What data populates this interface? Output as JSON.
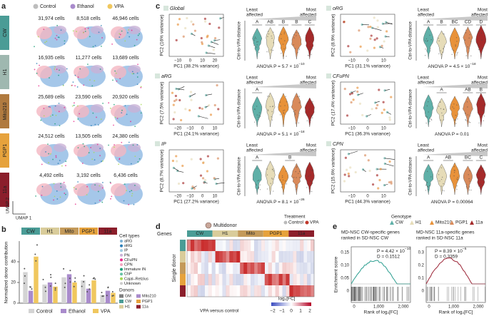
{
  "panel_a": {
    "letter": "a",
    "columns": [
      "Control",
      "Ethanol",
      "VPA"
    ],
    "column_colors": [
      "#bdbdbd",
      "#a98bcc",
      "#f0c75e"
    ],
    "rows": [
      {
        "donor": "CW",
        "counts": [
          "31,974 cells",
          "8,518 cells",
          "46,946 cells"
        ]
      },
      {
        "donor": "H1",
        "counts": [
          "16,935 cells",
          "11,277 cells",
          "13,689 cells"
        ]
      },
      {
        "donor": "Mito210",
        "counts": [
          "25,689 cells",
          "23,590 cells",
          "20,920 cells"
        ]
      },
      {
        "donor": "PGP1",
        "counts": [
          "24,512 cells",
          "13,505 cells",
          "24,380 cells"
        ]
      },
      {
        "donor": "11a",
        "counts": [
          "4,492 cells",
          "3,192 cells",
          "6,436 cells"
        ]
      }
    ],
    "donor_colors": [
      "#4a9c96",
      "#9fb8b0",
      "#b07a3f",
      "#e6a23c",
      "#8b1e2b"
    ],
    "y_axis": "UMAP 2",
    "x_axis": "UMAP 1"
  },
  "panel_b": {
    "letter": "b",
    "donors": [
      "CW",
      "H1",
      "Mito",
      "PGP1",
      "11a"
    ],
    "donor_colors": [
      "#4a9c96",
      "#d9cc9a",
      "#c49a5a",
      "#e6a23c",
      "#8b1e2b"
    ],
    "y_label": "Normalized donor contribution",
    "ylim": [
      0,
      60
    ],
    "yticks": [
      0,
      20,
      40
    ],
    "series": [
      {
        "name": "Control",
        "color": "#d4d4d4",
        "values": [
          30,
          18,
          25,
          22,
          8
        ]
      },
      {
        "name": "Ethanol",
        "color": "#a98bcc",
        "values": [
          12,
          20,
          28,
          14,
          12
        ]
      },
      {
        "name": "VPA",
        "color": "#f0c75e",
        "values": [
          45,
          16,
          20,
          22,
          10
        ]
      }
    ],
    "cell_types_title": "Cell types",
    "cell_types": [
      "aRG",
      "oRG",
      "IP",
      "PN",
      "CFuPN",
      "CPN",
      "Immature IN",
      "ChP",
      "Cajal–Retzius",
      "Unknown"
    ],
    "cell_type_colors": [
      "#7fb3d5",
      "#2c7fb8",
      "#9ecae1",
      "#c9b2d6",
      "#e7298a",
      "#f4a6c0",
      "#1b9e77",
      "#66c2a5",
      "#a6d854",
      "#cccccc"
    ],
    "donors_title": "Donors",
    "donor_legend": [
      "GM",
      "CW",
      "H1",
      "Mito210",
      "PGP1",
      "11a"
    ],
    "donor_legend_colors": [
      "#7f7f7f",
      "#4a9c96",
      "#d9cc9a",
      "#a98bcc",
      "#e6a23c",
      "#8b1e2b"
    ]
  },
  "panel_c": {
    "letter": "c",
    "least_affected": [
      "Least",
      "affected"
    ],
    "most_affected": [
      "Most",
      "affected"
    ],
    "y_label": "Ctrl-to-VPA distance",
    "genotype_colors": [
      "#5fb0a8",
      "#e6dcb8",
      "#e8923a",
      "#d98a5a",
      "#a52a2a"
    ],
    "plots": [
      {
        "name": "Global",
        "pc1": "PC1 (38.2% variance)",
        "pc2": "PC2 (16% variance)",
        "xticks": [
          "−10",
          "0",
          "10",
          "20"
        ],
        "letters": [
          "A",
          "AB",
          "B",
          "B",
          "C"
        ],
        "anova": "ANOVA P = 5.7 × 10",
        "anova_exp": "−10"
      },
      {
        "name": "aRG",
        "pc1": "PC1 (24.1% variance)",
        "pc2": "PC2 (7.5% variance)",
        "xticks": [
          "−20",
          "−10",
          "0",
          "10"
        ],
        "letters": [
          "A"
        ],
        "anova": "ANOVA P = 5.1 × 10",
        "anova_exp": "−18"
      },
      {
        "name": "IP",
        "pc1": "PC1 (27.2% variance)",
        "pc2": "PC2 (8.7% variance)",
        "xticks": [
          "−20",
          "−10",
          "0",
          "10"
        ],
        "letters": [
          "A",
          "B"
        ],
        "anova": "ANOVA P = 8.1 × 10",
        "anova_exp": "−26"
      },
      {
        "name": "oRG",
        "pc1": "PC1 (31.1% variance)",
        "pc2": "PC2 (8.9% variance)",
        "xticks": [
          "−10",
          "0",
          "10"
        ],
        "letters": [
          "A",
          "B",
          "BC",
          "CD",
          "D"
        ],
        "anova": "ANOVA P = 4.5 × 10",
        "anova_exp": "−18"
      },
      {
        "name": "CFuPN",
        "pc1": "PC1 (36.3% variance)",
        "pc2": "PC2 (17.4% variance)",
        "xticks": [
          "−10",
          "0",
          "10"
        ],
        "letters": [
          "A",
          "AB",
          "B"
        ],
        "anova": "ANOVA P = 0.01"
      },
      {
        "name": "CPN",
        "pc1": "PC1 (44.3% variance)",
        "pc2": "PC2 (15.6% variance)",
        "xticks": [
          "−10",
          "0",
          "10"
        ],
        "letters": [
          "A",
          "AB",
          "BC",
          "C"
        ],
        "anova": "ANOVA P = 0.00064"
      }
    ],
    "treatment_title": "Treatment",
    "treatments": [
      "Control",
      "VPA"
    ],
    "treatment_colors": [
      "#bbbbbb",
      "#c0392b"
    ],
    "genotype_title": "Genotype",
    "genotypes": [
      "CW",
      "H1",
      "Mito210",
      "PGP1",
      "11a"
    ]
  },
  "panel_d": {
    "letter": "d",
    "multidonor": "Multidonor",
    "genes": "Genes",
    "single_donor": "Single donor",
    "donors": [
      "CW",
      "H1",
      "Mito",
      "PGP1",
      "11a"
    ],
    "scale_title": "log₂[FC]",
    "scale_caption": "VPA versus control",
    "scale_ticks": [
      "−2",
      "−1",
      "0",
      "1",
      "2"
    ]
  },
  "panel_e": {
    "letter": "e",
    "y_label": "Enrichment score",
    "x_label": "Rank of log₂[FC]",
    "xticks": [
      "0",
      "1,000",
      "2,000"
    ],
    "plots": [
      {
        "title": [
          "MD-NSC CW-specific genes",
          "ranked in SD-NSC CW"
        ],
        "p": "P = 4.42 × 10",
        "p_exp": "−10",
        "d": "D = 0.1512",
        "yticks": [
          "0.15",
          "0.10",
          "0.05",
          "0"
        ],
        "color": "#2a9d8f"
      },
      {
        "title": [
          "MD-NSC 11a-specific genes",
          "ranked in SD-NSC 11a"
        ],
        "p": "P = 8.39 × 10",
        "p_exp": "−5",
        "d": "D = 0.3359",
        "yticks": [
          "0.3",
          "0.2",
          "0.1",
          "0"
        ],
        "color": "#9b2335"
      }
    ]
  }
}
